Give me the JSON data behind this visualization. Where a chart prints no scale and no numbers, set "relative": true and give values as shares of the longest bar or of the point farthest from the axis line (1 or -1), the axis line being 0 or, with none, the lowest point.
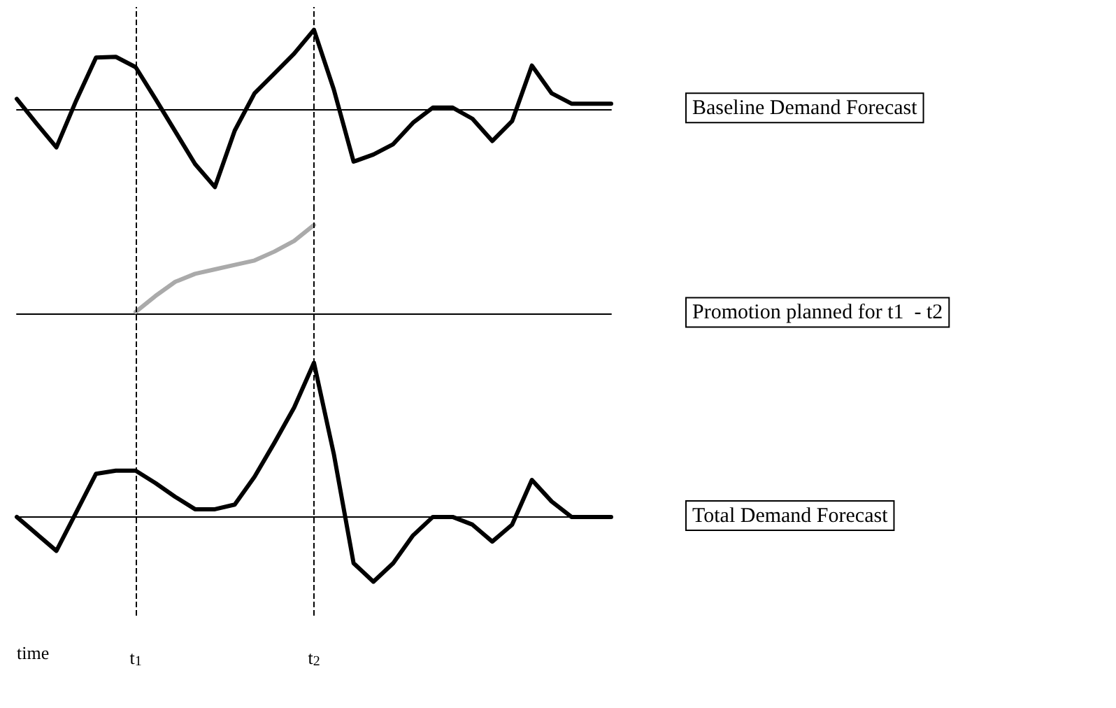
{
  "chart_data": [
    {
      "type": "line",
      "relative": true,
      "categories": [
        null,
        null,
        null,
        null,
        null,
        null,
        "t$_{1}$",
        null,
        null,
        null,
        null,
        null,
        null,
        null,
        null,
        "t$_{2}$",
        null,
        null,
        null,
        null,
        null,
        null,
        null,
        null,
        null,
        null,
        null,
        null,
        null,
        null,
        null
      ],
      "values": [
        0.13,
        -0.18,
        -0.48,
        0.11,
        0.65,
        0.66,
        0.53,
        0.13,
        -0.28,
        -0.69,
        -0.98,
        -0.27,
        0.2,
        0.45,
        0.7,
        1,
        0.25,
        -0.66,
        -0.57,
        -0.44,
        -0.17,
        0.02,
        0.02,
        -0.12,
        -0.4,
        -0.15,
        0.55,
        0.2,
        0.07,
        0.07,
        0.07
      ],
      "color": "#000000",
      "marker": "none",
      "line_style": "solid",
      "tick_labels": false,
      "ref_lines": [
        {
          "axis": "x",
          "value": "t$_{1}$",
          "color": "#000000",
          "line_style": "dashed"
        },
        {
          "axis": "x",
          "value": "t$_{2}$",
          "color": "#000000",
          "line_style": "dashed"
        }
      ],
      "annotations": [
        "Baseline Demand Forecast"
      ]
    },
    {
      "type": "line",
      "relative": true,
      "categories": [
        null,
        null,
        null,
        null,
        null,
        null,
        "t$_{1}$",
        null,
        null,
        null,
        null,
        null,
        null,
        null,
        null,
        "t$_{2}$",
        null,
        null,
        null,
        null,
        null,
        null,
        null,
        null,
        null,
        null,
        null,
        null,
        null,
        null,
        null
      ],
      "values": [
        null,
        null,
        null,
        null,
        null,
        null,
        0.02,
        0.2,
        0.36,
        0.45,
        0.5,
        0.55,
        0.6,
        0.7,
        0.82,
        1,
        null,
        null,
        null,
        null,
        null,
        null,
        null,
        null,
        null,
        null,
        null,
        null,
        null,
        null,
        null
      ],
      "color": "#aaaaaa",
      "marker": "none",
      "line_style": "solid",
      "tick_labels": false,
      "ref_lines": [
        {
          "axis": "x",
          "value": "t$_{1}$",
          "color": "#000000",
          "line_style": "dashed"
        },
        {
          "axis": "x",
          "value": "t$_{2}$",
          "color": "#000000",
          "line_style": "dashed"
        }
      ],
      "annotations": [
        "Promotion planned for t1  - t2"
      ]
    },
    {
      "type": "line",
      "relative": true,
      "categories": [
        null,
        null,
        null,
        null,
        null,
        null,
        "t$_{1}$",
        null,
        null,
        null,
        null,
        null,
        null,
        null,
        null,
        "t$_{2}$",
        null,
        null,
        null,
        null,
        null,
        null,
        null,
        null,
        null,
        null,
        null,
        null,
        null,
        null,
        null
      ],
      "values": [
        0,
        -0.11,
        -0.22,
        0.03,
        0.28,
        0.3,
        0.3,
        0.22,
        0.13,
        0.05,
        0.05,
        0.08,
        0.26,
        0.48,
        0.71,
        1,
        0.41,
        -0.3,
        -0.42,
        -0.3,
        -0.12,
        0,
        0,
        -0.05,
        -0.16,
        -0.05,
        0.24,
        0.1,
        0,
        0,
        0
      ],
      "color": "#000000",
      "marker": "none",
      "line_style": "solid",
      "tick_labels": "x",
      "xlabel": "time",
      "ref_lines": [
        {
          "axis": "x",
          "value": "t$_{1}$",
          "color": "#000000",
          "line_style": "dashed"
        },
        {
          "axis": "x",
          "value": "t$_{2}$",
          "color": "#000000",
          "line_style": "dashed"
        }
      ],
      "annotations": [
        "Total Demand Forecast"
      ]
    }
  ]
}
